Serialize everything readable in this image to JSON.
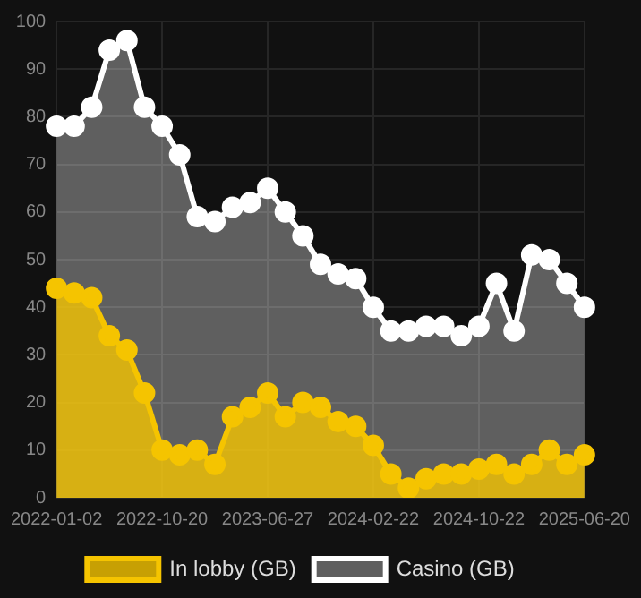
{
  "chart_data": {
    "type": "area",
    "categories": [
      "2022-01-02",
      null,
      null,
      null,
      null,
      null,
      "2022-10-20",
      null,
      null,
      null,
      null,
      null,
      "2023-06-27",
      null,
      null,
      null,
      null,
      null,
      "2024-02-22",
      null,
      null,
      null,
      null,
      null,
      "2024-10-22",
      null,
      null,
      null,
      null,
      null,
      "2025-06-20"
    ],
    "series": [
      {
        "name": "In lobby (GB)",
        "color": "#f5c400",
        "values": [
          44,
          43,
          42,
          34,
          31,
          22,
          10,
          9,
          10,
          7,
          17,
          19,
          22,
          17,
          20,
          19,
          16,
          15,
          11,
          5,
          2,
          4,
          5,
          5,
          6,
          7,
          5,
          7,
          10,
          7,
          9
        ]
      },
      {
        "name": "Casino (GB)",
        "color": "#ffffff",
        "values": [
          78,
          78,
          82,
          94,
          96,
          82,
          78,
          72,
          59,
          58,
          61,
          62,
          65,
          60,
          55,
          49,
          47,
          46,
          40,
          35,
          35,
          36,
          36,
          34,
          36,
          45,
          35,
          51,
          50,
          45,
          40
        ]
      }
    ],
    "ylim": [
      0,
      100
    ],
    "yticks": [
      0,
      10,
      20,
      30,
      40,
      50,
      60,
      70,
      80,
      90,
      100
    ],
    "grid": true,
    "legend": "bottom",
    "marker": "circle"
  }
}
